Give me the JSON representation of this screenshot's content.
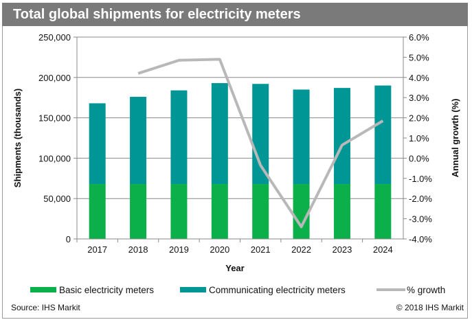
{
  "chart_data": {
    "type": "bar",
    "title": "Total global shipments for electricity meters",
    "xlabel": "Year",
    "ylabel": "Shipments (thousands)",
    "y2label": "Annual growth (%)",
    "categories": [
      "2017",
      "2018",
      "2019",
      "2020",
      "2021",
      "2022",
      "2023",
      "2024"
    ],
    "stacked": true,
    "ylim": [
      0,
      250000
    ],
    "yticks": [
      "0",
      "50,000",
      "100,000",
      "150,000",
      "200,000",
      "250,000"
    ],
    "y2lim": [
      -4.0,
      6.0
    ],
    "y2ticks": [
      "-4.0%",
      "-3.0%",
      "-2.0%",
      "-1.0%",
      "0.0%",
      "1.0%",
      "2.0%",
      "3.0%",
      "4.0%",
      "5.0%",
      "6.0%"
    ],
    "grid": true,
    "legend_position": "bottom",
    "series": [
      {
        "name": "Basic electricity meters",
        "type": "bar",
        "color": "#0bb04b",
        "values": [
          68000,
          68000,
          68000,
          68000,
          68000,
          68000,
          68000,
          68000
        ]
      },
      {
        "name": "Communicating electricity meters",
        "type": "bar",
        "color": "#009696",
        "values": [
          100000,
          108000,
          116000,
          125000,
          124000,
          117000,
          119000,
          122000
        ]
      },
      {
        "name": "% growth",
        "type": "line",
        "axis": "right",
        "color": "#b8b8b8",
        "values": [
          null,
          4.2,
          4.85,
          4.9,
          -0.35,
          -3.4,
          0.65,
          1.85
        ]
      }
    ],
    "source": "Source: IHS Markit",
    "copyright": "© 2018 IHS Markit"
  }
}
